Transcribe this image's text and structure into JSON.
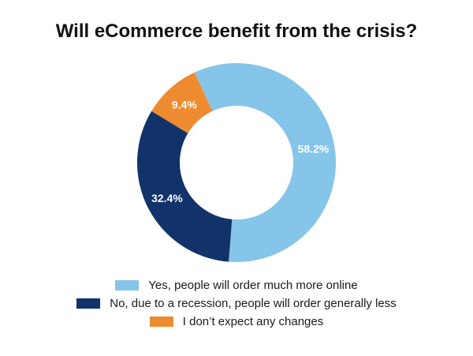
{
  "chart_data": {
    "type": "pie",
    "title": "Will eCommerce benefit from the crisis?",
    "donut": true,
    "slices": [
      {
        "label": "Yes, people will order much more online",
        "value": 58.2,
        "value_label": "58.2%",
        "color": "#85c5ea"
      },
      {
        "label": "No, due to a recession, people will order generally less",
        "value": 32.4,
        "value_label": "32.4%",
        "color": "#12326a"
      },
      {
        "label": "I don’t expect any changes",
        "value": 9.4,
        "value_label": "9.4%",
        "color": "#ee8a2f"
      }
    ],
    "legend_position": "bottom"
  }
}
